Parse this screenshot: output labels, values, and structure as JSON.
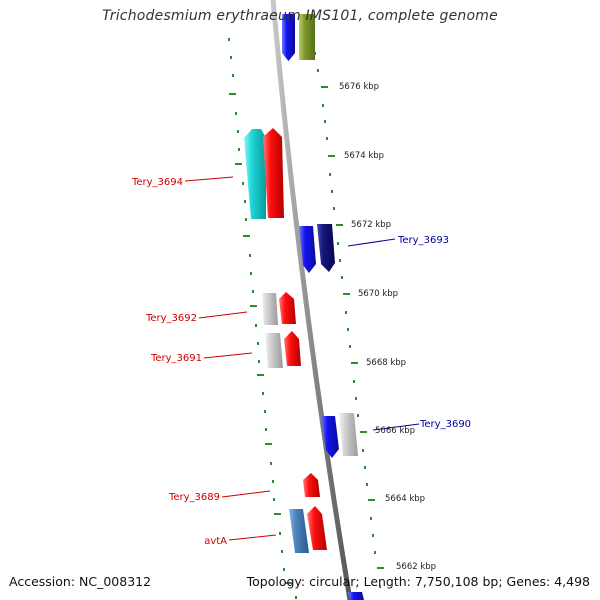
{
  "title": "Trichodesmium erythraeum IMS101, complete genome",
  "footer": {
    "accession": "Accession: NC_008312",
    "summary": "Topology: circular; Length: 7,750,108 bp; Genes: 4,498"
  },
  "ticks": [
    {
      "label": "5676 kbp"
    },
    {
      "label": "5674 kbp"
    },
    {
      "label": "5672 kbp"
    },
    {
      "label": "5670 kbp"
    },
    {
      "label": "5668 kbp"
    },
    {
      "label": "5666 kbp"
    },
    {
      "label": "5664 kbp"
    },
    {
      "label": "5662 kbp"
    }
  ],
  "gene_labels": [
    {
      "text": "Tery_3694",
      "color": "#cc0000"
    },
    {
      "text": "Tery_3693",
      "color": "#000099"
    },
    {
      "text": "Tery_3692",
      "color": "#cc0000"
    },
    {
      "text": "Tery_3691",
      "color": "#cc0000"
    },
    {
      "text": "Tery_3690",
      "color": "#000099"
    },
    {
      "text": "Tery_3689",
      "color": "#cc0000"
    },
    {
      "text": "avtA",
      "color": "#cc0000"
    }
  ],
  "colors": {
    "backbone": "#8a8a8a",
    "tick_marks": "#2e8b2e",
    "forward_label": "#cc0000",
    "reverse_label": "#000099"
  }
}
